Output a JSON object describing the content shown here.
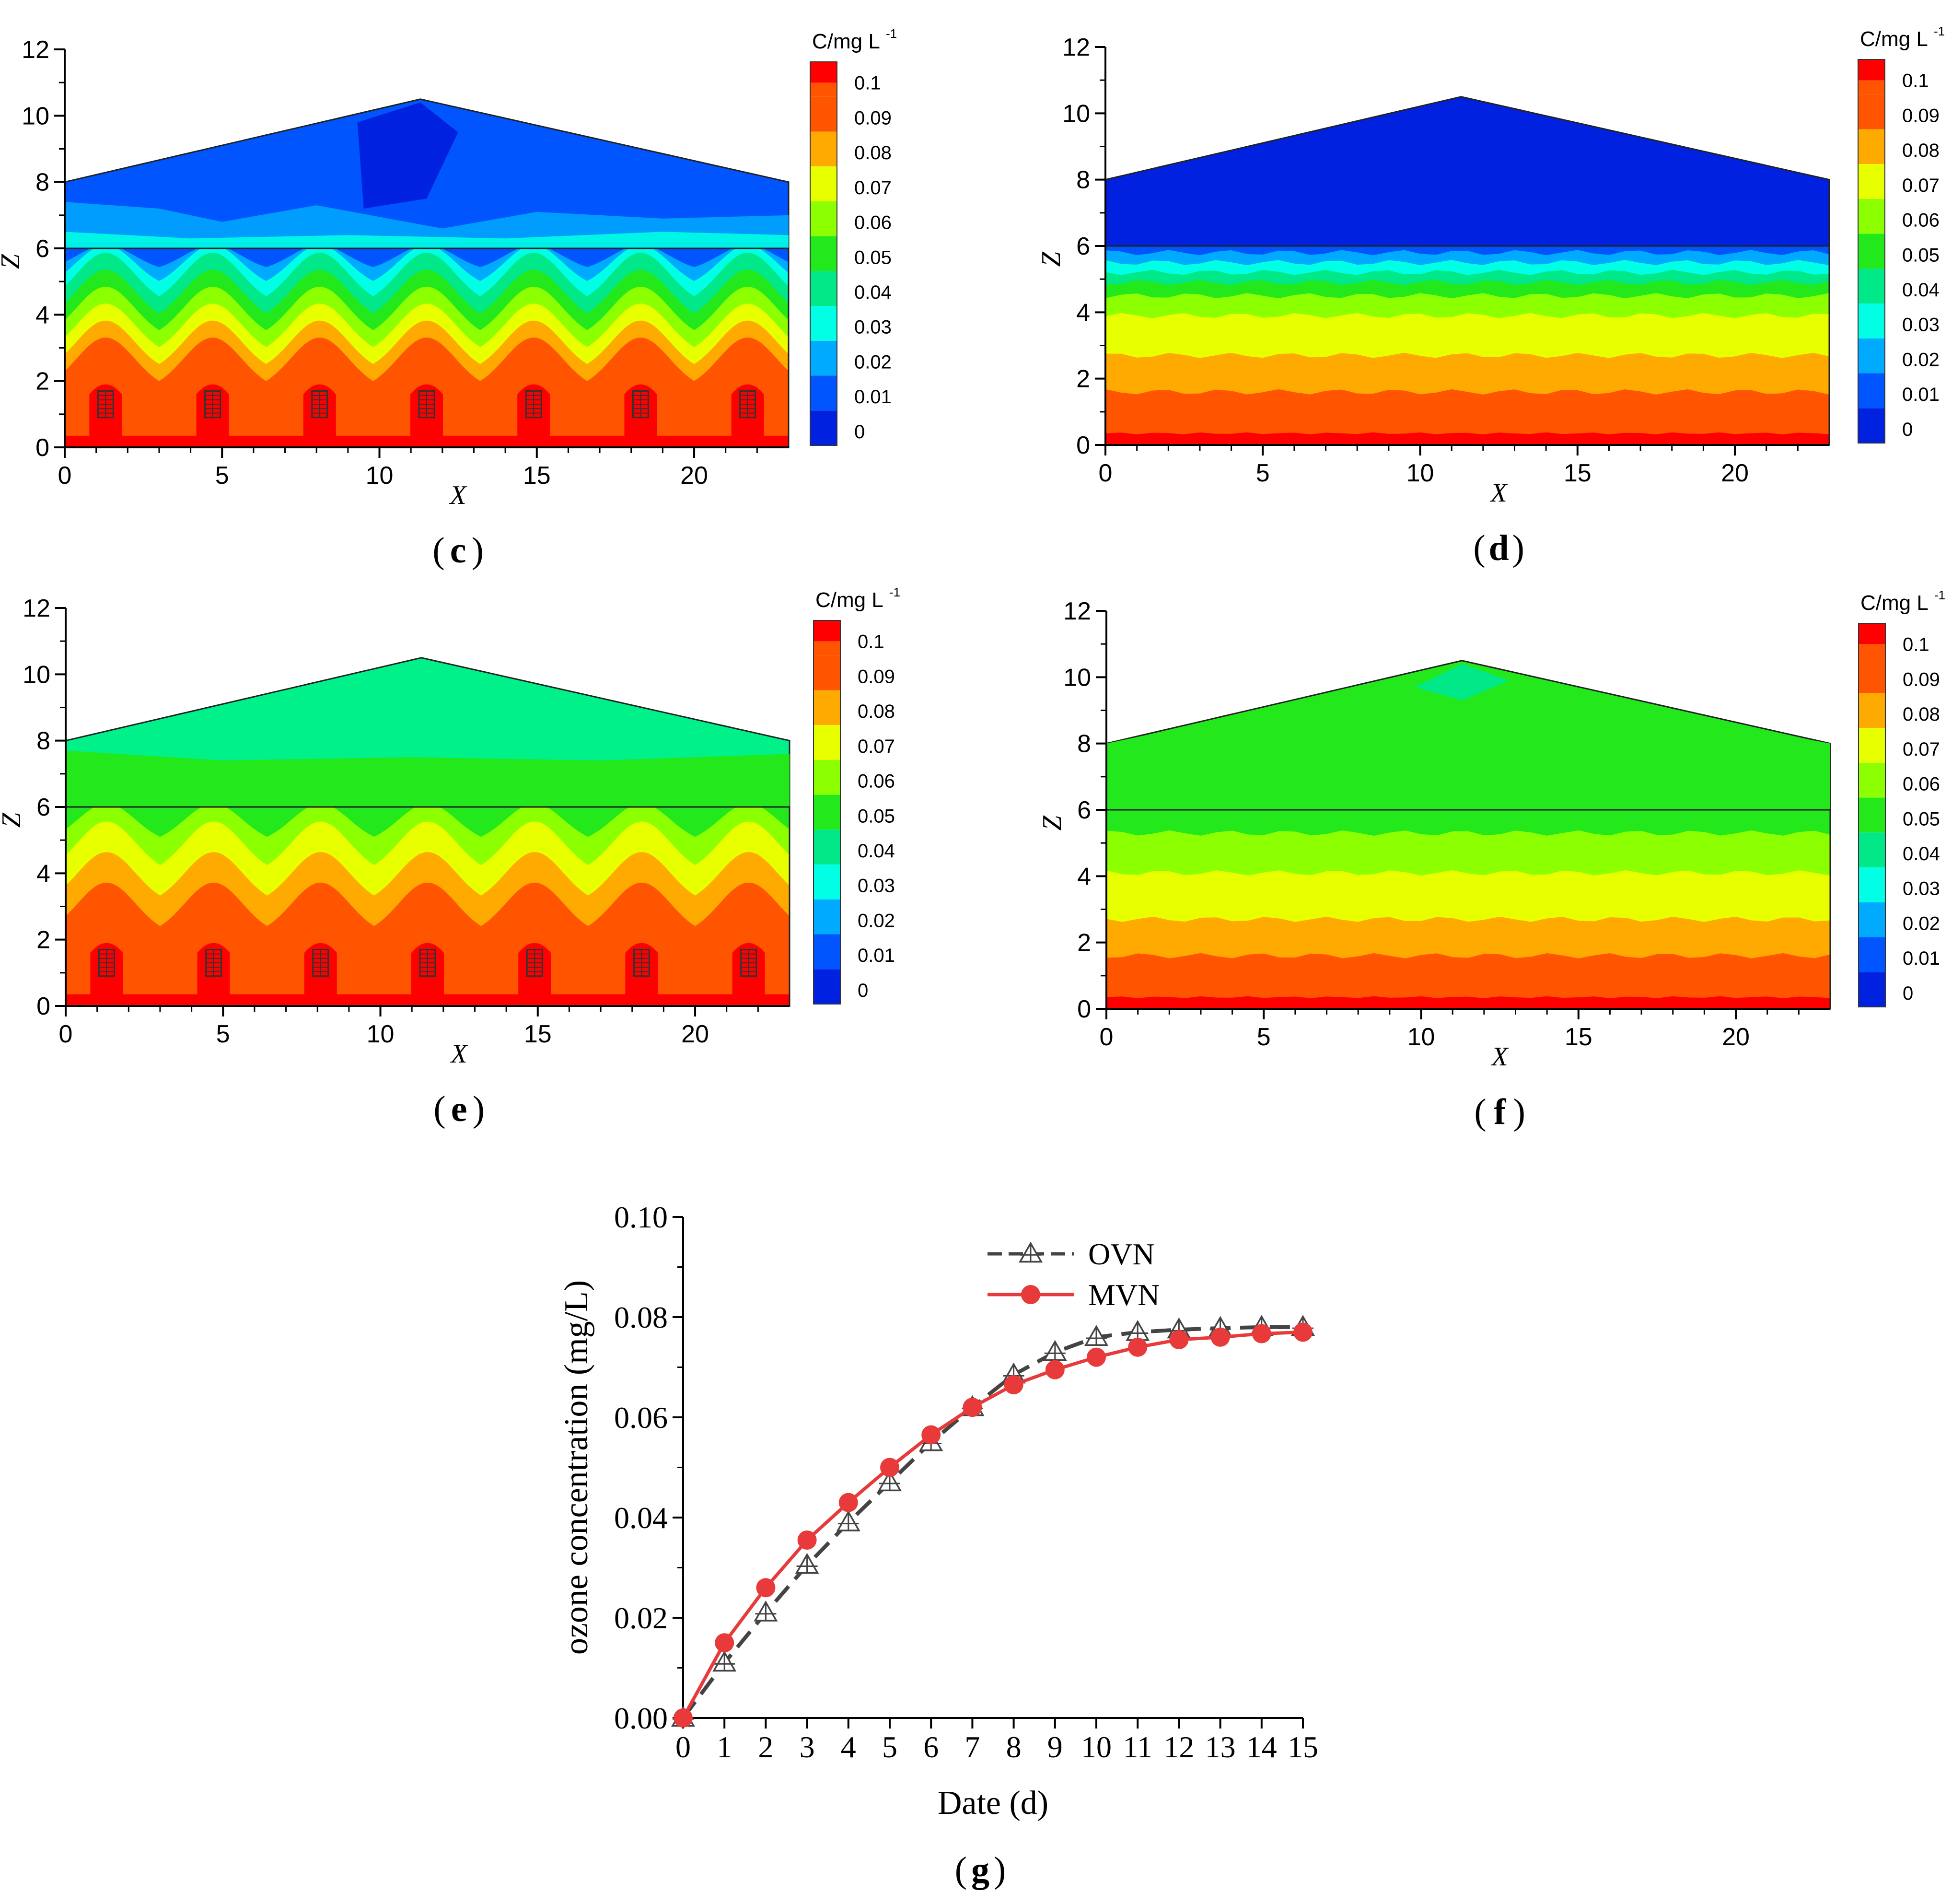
{
  "colorbar": {
    "title": "C/mg L",
    "title_sup": "-1",
    "levels": [
      "0.1",
      "0.09",
      "0.08",
      "0.07",
      "0.06",
      "0.05",
      "0.04",
      "0.03",
      "0.02",
      "0.01",
      "0"
    ],
    "colors": [
      "#ff0000",
      "#ff5500",
      "#ffaa00",
      "#e8ff00",
      "#8cff00",
      "#22e81c",
      "#00e888",
      "#00ffe4",
      "#00aaff",
      "#0055ff",
      "#0022e0"
    ]
  },
  "panels": [
    {
      "id": "c",
      "label": "c",
      "x_label": "X",
      "z_label": "Z",
      "x_ticks": [
        "0",
        "5",
        "10",
        "15",
        "20"
      ],
      "z_ticks": [
        "0",
        "2",
        "4",
        "6",
        "8",
        "10",
        "12"
      ],
      "pattern": "plumes",
      "roof_tint": "#0055ff"
    },
    {
      "id": "d",
      "label": "d",
      "x_label": "X",
      "z_label": "Z",
      "x_ticks": [
        "0",
        "5",
        "10",
        "15",
        "20"
      ],
      "z_ticks": [
        "0",
        "2",
        "4",
        "6",
        "8",
        "10",
        "12"
      ],
      "pattern": "layers",
      "roof_tint": "#0022e0"
    },
    {
      "id": "e",
      "label": "e",
      "x_label": "X",
      "z_label": "Z",
      "x_ticks": [
        "0",
        "5",
        "10",
        "15",
        "20"
      ],
      "z_ticks": [
        "0",
        "2",
        "4",
        "6",
        "8",
        "10",
        "12"
      ],
      "pattern": "plumes",
      "roof_tint": "#00f08a"
    },
    {
      "id": "f",
      "label": "f",
      "x_label": "X",
      "z_label": "Z",
      "x_ticks": [
        "0",
        "5",
        "10",
        "15",
        "20"
      ],
      "z_ticks": [
        "0",
        "2",
        "4",
        "6",
        "8",
        "10",
        "12"
      ],
      "pattern": "layers",
      "roof_tint": "#22e81c"
    }
  ],
  "chart_data": {
    "type": "line",
    "label": "g",
    "xlabel": "Date (d)",
    "ylabel": "ozone concentration (mg/L)",
    "x": [
      0,
      1,
      2,
      3,
      4,
      5,
      6,
      7,
      8,
      9,
      10,
      11,
      12,
      13,
      14,
      15
    ],
    "x_ticks": [
      "0",
      "1",
      "2",
      "3",
      "4",
      "5",
      "6",
      "7",
      "8",
      "9",
      "10",
      "11",
      "12",
      "13",
      "14",
      "15"
    ],
    "y_ticks": [
      "0.00",
      "0.02",
      "0.04",
      "0.06",
      "0.08",
      "0.10"
    ],
    "ylim": [
      0,
      0.1
    ],
    "xlim": [
      0,
      15
    ],
    "series": [
      {
        "name": "OVN",
        "color": "#444444",
        "style": "dashed",
        "marker": "triangle",
        "values": [
          0.0,
          0.011,
          0.021,
          0.0305,
          0.039,
          0.047,
          0.055,
          0.062,
          0.0685,
          0.073,
          0.076,
          0.077,
          0.0775,
          0.0778,
          0.078,
          0.078
        ]
      },
      {
        "name": "MVN",
        "color": "#e83a3a",
        "style": "solid",
        "marker": "circle",
        "values": [
          0.0,
          0.015,
          0.026,
          0.0355,
          0.043,
          0.05,
          0.0565,
          0.062,
          0.0665,
          0.0695,
          0.072,
          0.074,
          0.0755,
          0.076,
          0.0767,
          0.077
        ]
      }
    ]
  }
}
